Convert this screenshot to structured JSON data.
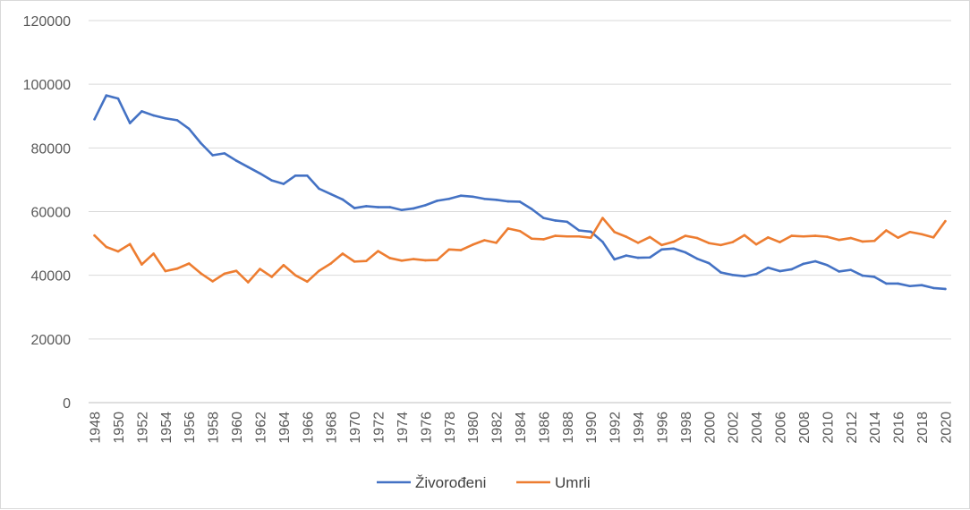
{
  "chart_data": {
    "type": "line",
    "title": "",
    "xlabel": "",
    "ylabel": "",
    "ylim": [
      0,
      120000
    ],
    "yticks": [
      0,
      20000,
      40000,
      60000,
      80000,
      100000,
      120000
    ],
    "grid": "horizontal",
    "legend_position": "bottom",
    "x": [
      1948,
      1949,
      1950,
      1951,
      1952,
      1953,
      1954,
      1955,
      1956,
      1957,
      1958,
      1959,
      1960,
      1961,
      1962,
      1963,
      1964,
      1965,
      1966,
      1967,
      1968,
      1969,
      1970,
      1971,
      1972,
      1973,
      1974,
      1975,
      1976,
      1977,
      1978,
      1979,
      1980,
      1981,
      1982,
      1983,
      1984,
      1985,
      1986,
      1987,
      1988,
      1989,
      1990,
      1991,
      1992,
      1993,
      1994,
      1995,
      1996,
      1997,
      1998,
      1999,
      2000,
      2001,
      2002,
      2003,
      2004,
      2005,
      2006,
      2007,
      2008,
      2009,
      2010,
      2011,
      2012,
      2013,
      2014,
      2015,
      2016,
      2017,
      2018,
      2019,
      2020
    ],
    "xtick_labels": [
      "1948",
      "1950",
      "1952",
      "1954",
      "1956",
      "1958",
      "1960",
      "1962",
      "1964",
      "1966",
      "1968",
      "1970",
      "1972",
      "1974",
      "1976",
      "1978",
      "1980",
      "1982",
      "1984",
      "1986",
      "1988",
      "1990",
      "1992",
      "1994",
      "1996",
      "1998",
      "2000",
      "2002",
      "2004",
      "2006",
      "2008",
      "2010",
      "2012",
      "2014",
      "2016",
      "2018",
      "2020"
    ],
    "series": [
      {
        "name": "Živorođeni",
        "color": "#4472c4",
        "values": [
          89000,
          96500,
          95500,
          87800,
          91500,
          90200,
          89300,
          88700,
          86000,
          81500,
          77700,
          78300,
          76000,
          74000,
          72000,
          69800,
          68700,
          71300,
          71300,
          67200,
          65500,
          63800,
          61100,
          61700,
          61400,
          61400,
          60500,
          61000,
          62000,
          63400,
          64000,
          65000,
          64700,
          64000,
          63700,
          63200,
          63100,
          60800,
          58000,
          57200,
          56800,
          54100,
          53700,
          50500,
          45000,
          46200,
          45500,
          45600,
          48100,
          48400,
          47200,
          45200,
          43800,
          40900,
          40100,
          39700,
          40400,
          42400,
          41300,
          41900,
          43600,
          44400,
          43200,
          41200,
          41700,
          39900,
          39500,
          37400,
          37400,
          36600,
          36900,
          36000,
          35700
        ]
      },
      {
        "name": "Umrli",
        "color": "#ed7d31",
        "values": [
          52500,
          48900,
          47500,
          49800,
          43400,
          46800,
          41300,
          42100,
          43700,
          40600,
          38100,
          40500,
          41400,
          37800,
          42000,
          39500,
          43200,
          40000,
          38000,
          41400,
          43700,
          46800,
          44300,
          44500,
          47600,
          45400,
          44600,
          45100,
          44700,
          44800,
          48100,
          47900,
          49600,
          51000,
          50200,
          54700,
          53900,
          51500,
          51300,
          52400,
          52200,
          52200,
          51800,
          58000,
          53600,
          52100,
          50200,
          52000,
          49500,
          50500,
          52400,
          51700,
          50100,
          49500,
          50400,
          52600,
          49700,
          51900,
          50400,
          52400,
          52200,
          52400,
          52100,
          51100,
          51700,
          50600,
          50800,
          54100,
          51800,
          53600,
          52900,
          51900,
          57000
        ]
      }
    ]
  }
}
